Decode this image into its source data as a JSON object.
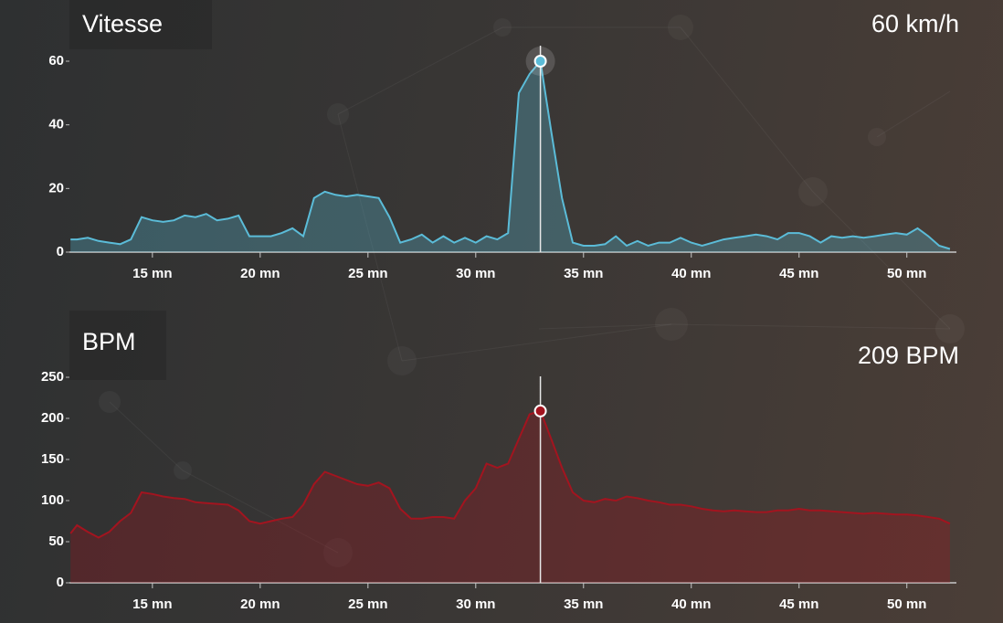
{
  "chart_data": [
    {
      "type": "line",
      "title": "Vitesse",
      "color": "#5bbcd8",
      "x": [
        11.2,
        11.5,
        12,
        12.5,
        13,
        13.5,
        14,
        14.5,
        15,
        15.5,
        16,
        16.5,
        17,
        17.5,
        18,
        18.5,
        19,
        19.5,
        20,
        20.5,
        21,
        21.5,
        22,
        22.5,
        23,
        23.5,
        24,
        24.5,
        25,
        25.5,
        26,
        26.5,
        27,
        27.5,
        28,
        28.5,
        29,
        29.5,
        30,
        30.5,
        31,
        31.5,
        32,
        32.5,
        33,
        33.5,
        34,
        34.5,
        35,
        35.5,
        36,
        36.5,
        37,
        37.5,
        38,
        38.5,
        39,
        39.5,
        40,
        40.5,
        41,
        41.5,
        42,
        42.5,
        43,
        43.5,
        44,
        44.5,
        45,
        45.5,
        46,
        46.5,
        47,
        47.5,
        48,
        48.5,
        49,
        49.5,
        50,
        50.5,
        51,
        51.5,
        52
      ],
      "values": [
        4,
        4,
        4.5,
        3.5,
        3,
        2.5,
        4,
        11,
        10,
        9.5,
        10,
        11.5,
        11,
        12,
        10,
        10.5,
        11.5,
        5,
        5,
        5,
        6,
        7.5,
        5,
        17,
        19,
        18,
        17.5,
        18,
        17.5,
        17,
        11,
        3,
        4,
        5.5,
        3,
        5,
        3,
        4.5,
        3,
        5,
        4,
        6,
        50,
        56,
        60,
        38,
        17,
        3,
        2,
        2,
        2.5,
        5,
        2,
        3.5,
        2,
        3,
        3,
        4.5,
        3,
        2,
        3,
        4,
        4.5,
        5,
        5.5,
        5,
        4,
        6,
        6,
        5,
        3,
        5,
        4.5,
        5,
        4.5,
        5,
        5.5,
        6,
        5.5,
        7.5,
        5,
        2,
        1
      ],
      "xlim": [
        11.15,
        52.3
      ],
      "xticks": [
        {
          "value": 15,
          "label": "15 mn"
        },
        {
          "value": 20,
          "label": "20 mn"
        },
        {
          "value": 25,
          "label": "25 mn"
        },
        {
          "value": 30,
          "label": "30 mn"
        },
        {
          "value": 35,
          "label": "35 mn"
        },
        {
          "value": 40,
          "label": "40 mn"
        },
        {
          "value": 45,
          "label": "45 mn"
        },
        {
          "value": 50,
          "label": "50 mn"
        }
      ],
      "ylim": [
        0,
        60
      ],
      "yticks": [
        0,
        20,
        40,
        60
      ],
      "annotations": [
        {
          "x": 33,
          "y": 60,
          "label": "60 km/h"
        }
      ]
    },
    {
      "type": "line",
      "title": "BPM",
      "color": "#a3141f",
      "x": [
        11.2,
        11.5,
        12,
        12.5,
        13,
        13.5,
        14,
        14.5,
        15,
        15.5,
        16,
        16.5,
        17,
        17.5,
        18,
        18.5,
        19,
        19.5,
        20,
        20.5,
        21,
        21.5,
        22,
        22.5,
        23,
        23.5,
        24,
        24.5,
        25,
        25.5,
        26,
        26.5,
        27,
        27.5,
        28,
        28.5,
        29,
        29.5,
        30,
        30.5,
        31,
        31.5,
        32,
        32.5,
        33,
        33.5,
        34,
        34.5,
        35,
        35.5,
        36,
        36.5,
        37,
        37.5,
        38,
        38.5,
        39,
        39.5,
        40,
        40.5,
        41,
        41.5,
        42,
        42.5,
        43,
        43.5,
        44,
        44.5,
        45,
        45.5,
        46,
        46.5,
        47,
        47.5,
        48,
        48.5,
        49,
        49.5,
        50,
        50.5,
        51,
        51.5,
        52
      ],
      "values": [
        60,
        70,
        62,
        55,
        62,
        75,
        85,
        110,
        108,
        105,
        103,
        102,
        98,
        97,
        96,
        95,
        88,
        75,
        72,
        75,
        78,
        80,
        95,
        120,
        135,
        130,
        125,
        120,
        118,
        122,
        115,
        90,
        78,
        78,
        80,
        80,
        78,
        100,
        115,
        145,
        140,
        145,
        175,
        205,
        209,
        175,
        140,
        110,
        100,
        98,
        102,
        100,
        105,
        103,
        100,
        98,
        95,
        95,
        93,
        90,
        88,
        87,
        88,
        87,
        86,
        86,
        88,
        88,
        90,
        88,
        88,
        87,
        86,
        85,
        84,
        85,
        84,
        83,
        83,
        82,
        80,
        78,
        72
      ],
      "xlim": [
        11.15,
        52.3
      ],
      "xticks": [
        {
          "value": 15,
          "label": "15 mn"
        },
        {
          "value": 20,
          "label": "20 mn"
        },
        {
          "value": 25,
          "label": "25 mn"
        },
        {
          "value": 30,
          "label": "30 mn"
        },
        {
          "value": 35,
          "label": "35 mn"
        },
        {
          "value": 40,
          "label": "40 mn"
        },
        {
          "value": 45,
          "label": "45 mn"
        },
        {
          "value": 50,
          "label": "50 mn"
        }
      ],
      "ylim": [
        0,
        250
      ],
      "yticks": [
        0,
        50,
        100,
        150,
        200,
        250
      ],
      "annotations": [
        {
          "x": 33,
          "y": 209,
          "label": "209 BPM"
        }
      ]
    }
  ]
}
